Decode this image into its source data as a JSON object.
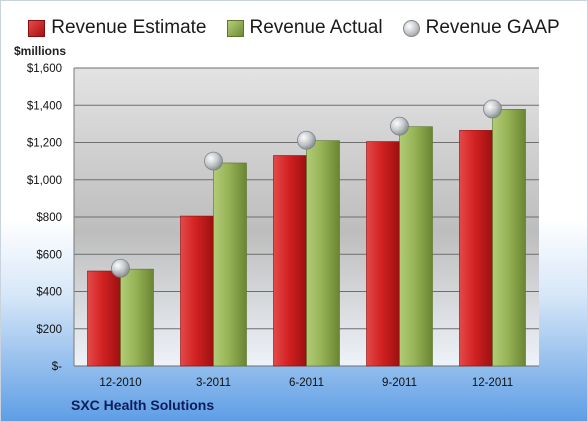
{
  "chart_data": {
    "type": "bar",
    "categories": [
      "12-2010",
      "3-2011",
      "6-2011",
      "9-2011",
      "12-2011"
    ],
    "series": [
      {
        "name": "Revenue Estimate",
        "type": "bar",
        "color": "#c81e1e",
        "values": [
          510,
          805,
          1130,
          1205,
          1265
        ]
      },
      {
        "name": "Revenue Actual",
        "type": "bar",
        "color": "#8aa84a",
        "values": [
          520,
          1090,
          1210,
          1285,
          1378
        ]
      },
      {
        "name": "Revenue GAAP",
        "type": "scatter",
        "color": "#b5b9be",
        "values": [
          525,
          1100,
          1212,
          1288,
          1380
        ]
      }
    ],
    "ylabel": "$millions",
    "ylim": [
      0,
      1600
    ],
    "yticks": [
      0,
      200,
      400,
      600,
      800,
      1000,
      1200,
      1400,
      1600
    ],
    "ytick_labels": [
      "$-",
      "$200",
      "$400",
      "$600",
      "$800",
      "$1,000",
      "$1,200",
      "$1,400",
      "$1,600"
    ],
    "grid": true,
    "legend_position": "top"
  },
  "footer": {
    "company": "SXC Health Solutions"
  }
}
